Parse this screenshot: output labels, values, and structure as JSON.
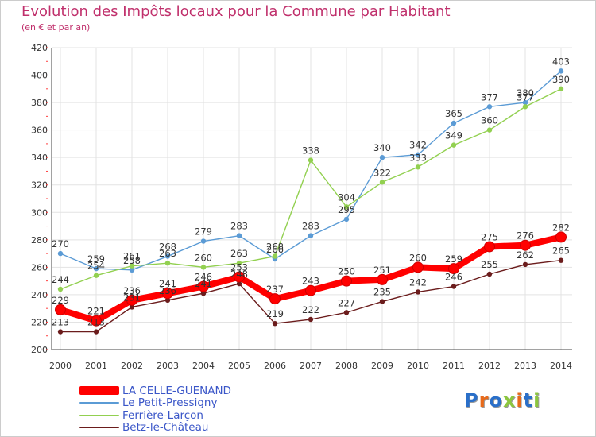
{
  "chart_data": {
    "type": "line",
    "title": "Evolution des Impôts locaux pour la Commune par Habitant",
    "subtitle": "(en € et par an)",
    "x": [
      "2000",
      "2001",
      "2002",
      "2003",
      "2004",
      "2005",
      "2006",
      "2007",
      "2008",
      "2009",
      "2010",
      "2011",
      "2012",
      "2013",
      "2014"
    ],
    "ylim": [
      200,
      420
    ],
    "yticks": [
      "200",
      "220",
      "240",
      "260",
      "280",
      "300",
      "320",
      "340",
      "360",
      "380",
      "400",
      "420"
    ],
    "grid": true,
    "legend_position": "bottom-left",
    "series": [
      {
        "name": "Le Petit-Pressigny",
        "color": "#5b9bd5",
        "values": [
          270,
          259,
          258,
          268,
          279,
          283,
          266,
          283,
          295,
          340,
          342,
          365,
          377,
          380,
          403
        ]
      },
      {
        "name": "Ferrière-Larçon",
        "color": "#92d050",
        "values": [
          244,
          254,
          261,
          263,
          260,
          263,
          268,
          338,
          304,
          322,
          333,
          349,
          360,
          377,
          390
        ]
      },
      {
        "name": "Betz-le-Château",
        "color": "#6b1c1c",
        "values": [
          213,
          213,
          231,
          236,
          241,
          248,
          219,
          222,
          227,
          235,
          242,
          246,
          255,
          262,
          265
        ]
      },
      {
        "name": "LA CELLE-GUENAND",
        "color": "#ff0000",
        "values": [
          229,
          221,
          236,
          241,
          246,
          253,
          237,
          243,
          250,
          251,
          260,
          259,
          275,
          276,
          282
        ]
      }
    ]
  },
  "legend": {
    "items": [
      {
        "label": "LA CELLE-GUENAND",
        "color": "#ff0000"
      },
      {
        "label": "Le Petit-Pressigny",
        "color": "#5b9bd5"
      },
      {
        "label": "Ferrière-Larçon",
        "color": "#92d050"
      },
      {
        "label": "Betz-le-Château",
        "color": "#6b1c1c"
      }
    ]
  },
  "logo": {
    "letters": [
      {
        "char": "P",
        "color": "#2a6fc9"
      },
      {
        "char": "r",
        "color": "#e86a1a"
      },
      {
        "char": "o",
        "color": "#2a6fc9"
      },
      {
        "char": "x",
        "color": "#8cc63f"
      },
      {
        "char": "i",
        "color": "#e86a1a"
      },
      {
        "char": "t",
        "color": "#2a6fc9"
      },
      {
        "char": "i",
        "color": "#8cc63f"
      }
    ]
  }
}
